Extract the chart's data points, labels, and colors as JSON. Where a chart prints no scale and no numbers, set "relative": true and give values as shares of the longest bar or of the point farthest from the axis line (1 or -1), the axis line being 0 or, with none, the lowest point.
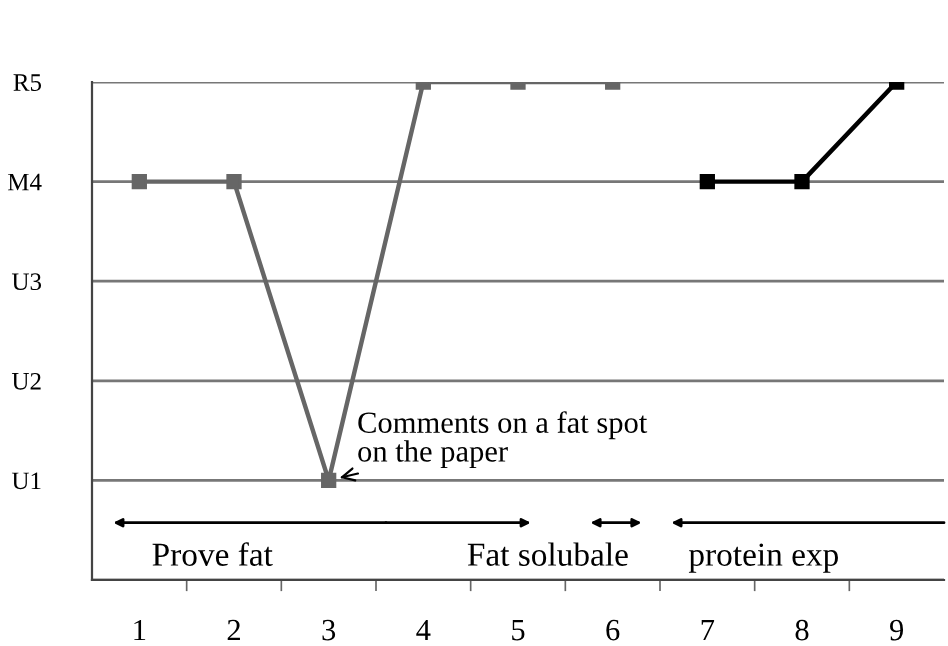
{
  "chart_data": {
    "type": "line",
    "categories": [
      "1",
      "2",
      "3",
      "4",
      "5",
      "6",
      "7",
      "8",
      "9"
    ],
    "series": [
      {
        "color": "#666666",
        "values": [
          0.8,
          0.8,
          0.2,
          1,
          1,
          1,
          null,
          null,
          null
        ]
      },
      {
        "color": "#000000",
        "values": [
          null,
          null,
          null,
          null,
          null,
          null,
          0.8,
          0.8,
          1
        ]
      }
    ],
    "relative": true,
    "y_categories": [
      "R5",
      "M4",
      "U3",
      "U2",
      "U1",
      null
    ],
    "grid": "y",
    "marker": "square",
    "line_style": "solid",
    "legend": false,
    "annotations": [
      {
        "text": "Comments on a fat spot\non the paper",
        "x": "3",
        "y": 0.2
      },
      "Prove fat",
      "Fat solubale",
      "protein exp"
    ]
  }
}
